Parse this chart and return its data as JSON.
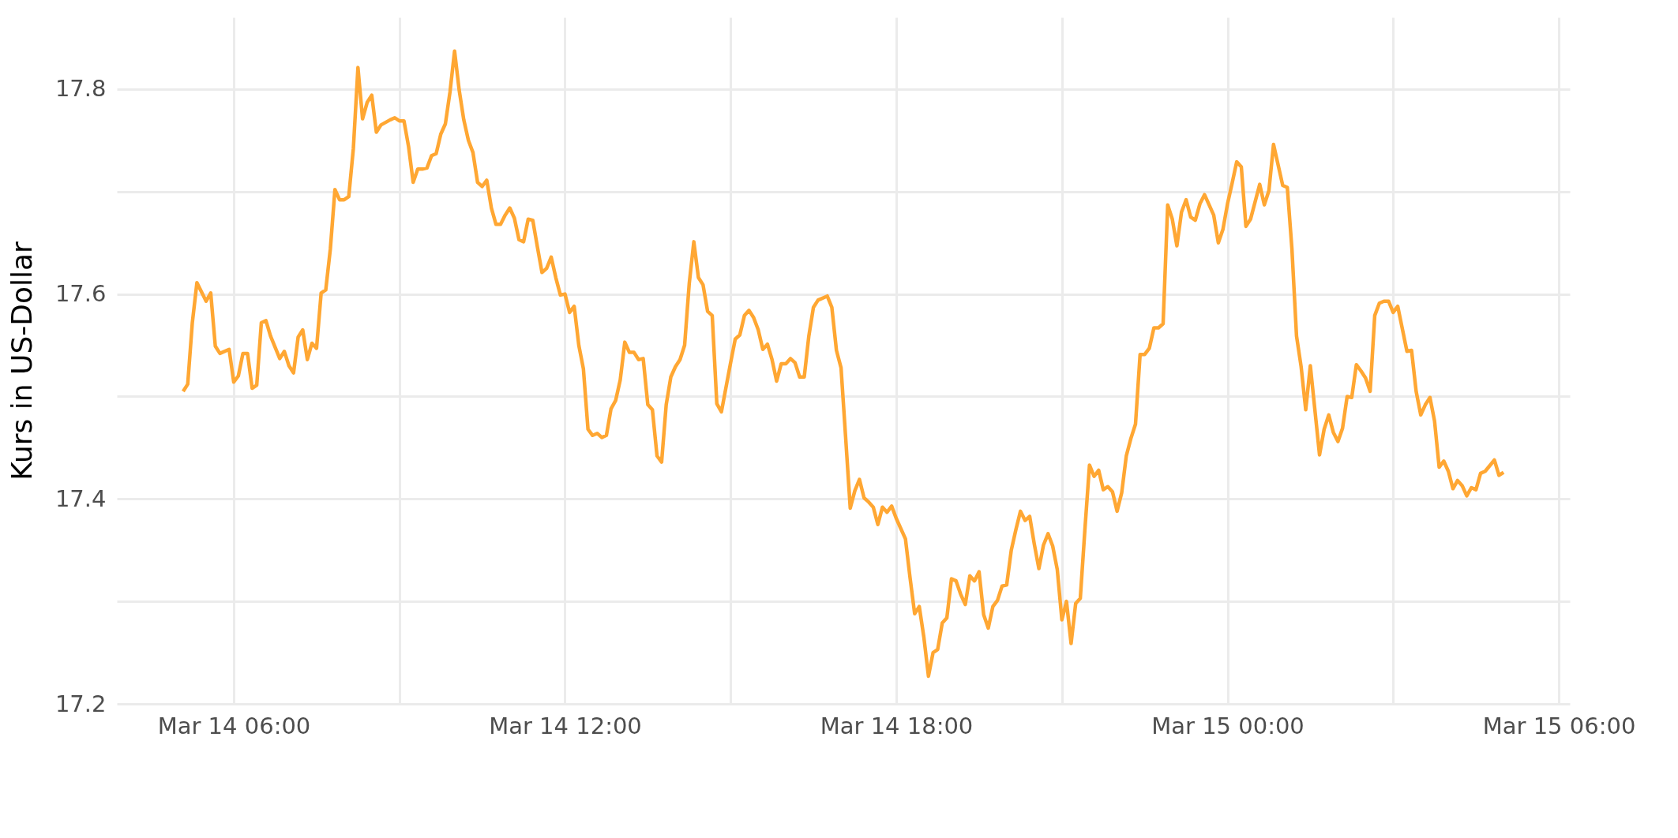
{
  "chart_data": {
    "type": "line",
    "ylabel": "Kurs in US-Dollar",
    "color": "#ffa733",
    "grid": true,
    "xlim": [
      "--03-14T03:53",
      "--03-15T06:12"
    ],
    "ylim": [
      17.2,
      17.87
    ],
    "xticks": [
      {
        "value": "--03-14T06:00",
        "label": "Mar 14 06:00"
      },
      {
        "value": "--03-14T09:00",
        "label": null
      },
      {
        "value": "--03-14T12:00",
        "label": "Mar 14 12:00"
      },
      {
        "value": "--03-14T15:00",
        "label": null
      },
      {
        "value": "--03-14T18:00",
        "label": "Mar 14 18:00"
      },
      {
        "value": "--03-14T21:00",
        "label": null
      },
      {
        "value": "--03-15T00:00",
        "label": "Mar 15 00:00"
      },
      {
        "value": "--03-15T03:00",
        "label": null
      },
      {
        "value": "--03-15T06:00",
        "label": "Mar 15 06:00"
      }
    ],
    "yticks": [
      17.2,
      {
        "value": 17.3,
        "label": null
      },
      17.4,
      {
        "value": 17.5,
        "label": null
      },
      17.6,
      {
        "value": 17.7,
        "label": null
      },
      17.8
    ],
    "x": [
      "--03-14T05:05",
      "--03-14T05:10",
      "--03-14T05:15",
      "--03-14T05:20",
      "--03-14T05:30",
      "--03-14T05:35",
      "--03-14T05:40",
      "--03-14T05:45",
      "--03-14T05:55",
      "--03-14T06:00",
      "--03-14T06:05",
      "--03-14T06:10",
      "--03-14T06:15",
      "--03-14T06:20",
      "--03-14T06:25",
      "--03-14T06:30",
      "--03-14T06:35",
      "--03-14T06:40",
      "--03-14T06:50",
      "--03-14T06:55",
      "--03-14T07:00",
      "--03-14T07:05",
      "--03-14T07:10",
      "--03-14T07:15",
      "--03-14T07:20",
      "--03-14T07:25",
      "--03-14T07:30",
      "--03-14T07:35",
      "--03-14T07:40",
      "--03-14T07:45",
      "--03-14T07:50",
      "--03-14T07:55",
      "--03-14T08:00",
      "--03-14T08:05",
      "--03-14T08:10",
      "--03-14T08:15",
      "--03-14T08:20",
      "--03-14T08:25",
      "--03-14T08:30",
      "--03-14T08:35",
      "--03-14T08:40",
      "--03-14T08:50",
      "--03-14T08:55",
      "--03-14T09:00",
      "--03-14T09:05",
      "--03-14T09:10",
      "--03-14T09:15",
      "--03-14T09:20",
      "--03-14T09:25",
      "--03-14T09:30",
      "--03-14T09:35",
      "--03-14T09:40",
      "--03-14T09:45",
      "--03-14T09:50",
      "--03-14T09:55",
      "--03-14T10:00",
      "--03-14T10:05",
      "--03-14T10:10",
      "--03-14T10:15",
      "--03-14T10:20",
      "--03-14T10:25",
      "--03-14T10:30",
      "--03-14T10:35",
      "--03-14T10:40",
      "--03-14T10:45",
      "--03-14T10:50",
      "--03-14T10:55",
      "--03-14T11:00",
      "--03-14T11:05",
      "--03-14T11:10",
      "--03-14T11:15",
      "--03-14T11:20",
      "--03-14T11:25",
      "--03-14T11:30",
      "--03-14T11:35",
      "--03-14T11:40",
      "--03-14T11:45",
      "--03-14T11:50",
      "--03-14T11:55",
      "--03-14T12:00",
      "--03-14T12:05",
      "--03-14T12:10",
      "--03-14T12:15",
      "--03-14T12:20",
      "--03-14T12:25",
      "--03-14T12:30",
      "--03-14T12:35",
      "--03-14T12:40",
      "--03-14T12:45",
      "--03-14T12:50",
      "--03-14T12:55",
      "--03-14T13:00",
      "--03-14T13:05",
      "--03-14T13:10",
      "--03-14T13:15",
      "--03-14T13:20",
      "--03-14T13:25",
      "--03-14T13:30",
      "--03-14T13:35",
      "--03-14T13:40",
      "--03-14T13:45",
      "--03-14T13:50",
      "--03-14T13:55",
      "--03-14T14:00",
      "--03-14T14:05",
      "--03-14T14:10",
      "--03-14T14:15",
      "--03-14T14:20",
      "--03-14T14:25",
      "--03-14T14:30",
      "--03-14T14:35",
      "--03-14T14:40",
      "--03-14T14:45",
      "--03-14T14:50",
      "--03-14T15:00",
      "--03-14T15:05",
      "--03-14T15:10",
      "--03-14T15:15",
      "--03-14T15:20",
      "--03-14T15:25",
      "--03-14T15:30",
      "--03-14T15:35",
      "--03-14T15:40",
      "--03-14T15:45",
      "--03-14T15:50",
      "--03-14T15:55",
      "--03-14T16:00",
      "--03-14T16:05",
      "--03-14T16:10",
      "--03-14T16:15",
      "--03-14T16:20",
      "--03-14T16:25",
      "--03-14T16:30",
      "--03-14T16:35",
      "--03-14T16:45",
      "--03-14T16:50",
      "--03-14T16:55",
      "--03-14T17:00",
      "--03-14T17:05",
      "--03-14T17:10",
      "--03-14T17:15",
      "--03-14T17:20",
      "--03-14T17:25",
      "--03-14T17:30",
      "--03-14T17:35",
      "--03-14T17:40",
      "--03-14T17:45",
      "--03-14T17:50",
      "--03-14T17:55",
      "--03-14T18:00",
      "--03-14T18:05",
      "--03-14T18:10",
      "--03-14T18:15",
      "--03-14T18:20",
      "--03-14T18:25",
      "--03-14T18:30",
      "--03-14T18:35",
      "--03-14T18:40",
      "--03-14T18:45",
      "--03-14T18:50",
      "--03-14T18:55",
      "--03-14T19:00",
      "--03-14T19:05",
      "--03-14T19:10",
      "--03-14T19:15",
      "--03-14T19:20",
      "--03-14T19:25",
      "--03-14T19:30",
      "--03-14T19:35",
      "--03-14T19:40",
      "--03-14T19:45",
      "--03-14T19:50",
      "--03-14T19:55",
      "--03-14T20:00",
      "--03-14T20:05",
      "--03-14T20:10",
      "--03-14T20:15",
      "--03-14T20:20",
      "--03-14T20:25",
      "--03-14T20:30",
      "--03-14T20:35",
      "--03-14T20:40",
      "--03-14T20:45",
      "--03-14T20:50",
      "--03-14T20:55",
      "--03-14T21:00",
      "--03-14T21:05",
      "--03-14T21:10",
      "--03-14T21:15",
      "--03-14T21:20",
      "--03-14T21:25",
      "--03-14T21:30",
      "--03-14T21:35",
      "--03-14T21:40",
      "--03-14T21:45",
      "--03-14T21:50",
      "--03-14T21:55",
      "--03-14T22:00",
      "--03-14T22:05",
      "--03-14T22:10",
      "--03-14T22:15",
      "--03-14T22:20",
      "--03-14T22:25",
      "--03-14T22:30",
      "--03-14T22:35",
      "--03-14T22:40",
      "--03-14T22:45",
      "--03-14T22:50",
      "--03-14T22:55",
      "--03-14T23:00",
      "--03-14T23:05",
      "--03-14T23:10",
      "--03-14T23:15",
      "--03-14T23:20",
      "--03-14T23:25",
      "--03-14T23:30",
      "--03-14T23:35",
      "--03-14T23:45",
      "--03-14T23:50",
      "--03-14T23:55",
      "--03-15T00:00",
      "--03-15T00:05",
      "--03-15T00:10",
      "--03-15T00:15",
      "--03-15T00:20",
      "--03-15T00:25",
      "--03-15T00:35",
      "--03-15T00:40",
      "--03-15T00:45",
      "--03-15T00:50",
      "--03-15T00:55",
      "--03-15T01:00",
      "--03-15T01:05",
      "--03-15T01:10",
      "--03-15T01:15",
      "--03-15T01:20",
      "--03-15T01:25",
      "--03-15T01:30",
      "--03-15T01:40",
      "--03-15T01:45",
      "--03-15T01:50",
      "--03-15T01:55",
      "--03-15T02:00",
      "--03-15T02:05",
      "--03-15T02:10",
      "--03-15T02:15",
      "--03-15T02:20",
      "--03-15T02:25",
      "--03-15T02:30",
      "--03-15T02:35",
      "--03-15T02:40",
      "--03-15T02:45",
      "--03-15T02:50",
      "--03-15T02:55",
      "--03-15T03:00",
      "--03-15T03:05",
      "--03-15T03:10",
      "--03-15T03:15",
      "--03-15T03:20",
      "--03-15T03:25",
      "--03-15T03:30",
      "--03-15T03:35",
      "--03-15T03:40",
      "--03-15T03:45",
      "--03-15T03:50",
      "--03-15T03:55",
      "--03-15T04:00",
      "--03-15T04:05",
      "--03-15T04:10",
      "--03-15T04:15",
      "--03-15T04:20",
      "--03-15T04:25",
      "--03-15T04:30",
      "--03-15T04:35",
      "--03-15T04:40",
      "--03-15T04:50",
      "--03-15T04:55",
      "--03-15T05:00"
    ],
    "values": [
      17.505,
      17.512,
      17.572,
      17.611,
      17.593,
      17.601,
      17.549,
      17.542,
      17.546,
      17.514,
      17.52,
      17.542,
      17.542,
      17.508,
      17.511,
      17.572,
      17.574,
      17.559,
      17.537,
      17.544,
      17.53,
      17.523,
      17.558,
      17.565,
      17.536,
      17.552,
      17.547,
      17.601,
      17.604,
      17.644,
      17.702,
      17.692,
      17.692,
      17.695,
      17.742,
      17.821,
      17.771,
      17.787,
      17.794,
      17.758,
      17.765,
      17.77,
      17.772,
      17.769,
      17.769,
      17.744,
      17.709,
      17.722,
      17.722,
      17.723,
      17.735,
      17.737,
      17.756,
      17.766,
      17.797,
      17.837,
      17.799,
      17.77,
      17.75,
      17.738,
      17.709,
      17.705,
      17.711,
      17.684,
      17.668,
      17.668,
      17.677,
      17.684,
      17.674,
      17.653,
      17.651,
      17.673,
      17.672,
      17.646,
      17.621,
      17.625,
      17.636,
      17.616,
      17.599,
      17.6,
      17.582,
      17.588,
      17.55,
      17.527,
      17.468,
      17.462,
      17.464,
      17.46,
      17.462,
      17.488,
      17.496,
      17.516,
      17.553,
      17.543,
      17.543,
      17.536,
      17.537,
      17.492,
      17.487,
      17.442,
      17.436,
      17.492,
      17.519,
      17.529,
      17.536,
      17.55,
      17.61,
      17.651,
      17.616,
      17.609,
      17.583,
      17.579,
      17.493,
      17.485,
      17.533,
      17.556,
      17.56,
      17.579,
      17.584,
      17.577,
      17.565,
      17.546,
      17.551,
      17.536,
      17.515,
      17.532,
      17.532,
      17.537,
      17.533,
      17.519,
      17.519,
      17.559,
      17.587,
      17.594,
      17.598,
      17.587,
      17.545,
      17.528,
      17.46,
      17.391,
      17.408,
      17.419,
      17.401,
      17.397,
      17.392,
      17.375,
      17.392,
      17.387,
      17.393,
      17.381,
      17.371,
      17.361,
      17.323,
      17.288,
      17.295,
      17.265,
      17.227,
      17.25,
      17.253,
      17.279,
      17.284,
      17.322,
      17.32,
      17.307,
      17.297,
      17.325,
      17.32,
      17.329,
      17.287,
      17.274,
      17.295,
      17.301,
      17.315,
      17.316,
      17.35,
      17.37,
      17.388,
      17.379,
      17.383,
      17.356,
      17.332,
      17.355,
      17.366,
      17.354,
      17.331,
      17.282,
      17.3,
      17.259,
      17.298,
      17.303,
      17.37,
      17.433,
      17.422,
      17.428,
      17.409,
      17.412,
      17.407,
      17.388,
      17.406,
      17.442,
      17.459,
      17.473,
      17.541,
      17.541,
      17.547,
      17.567,
      17.567,
      17.571,
      17.687,
      17.673,
      17.647,
      17.68,
      17.692,
      17.675,
      17.672,
      17.688,
      17.697,
      17.677,
      17.65,
      17.663,
      17.688,
      17.708,
      17.729,
      17.724,
      17.666,
      17.673,
      17.707,
      17.687,
      17.701,
      17.746,
      17.726,
      17.706,
      17.704,
      17.644,
      17.559,
      17.529,
      17.487,
      17.53,
      17.443,
      17.468,
      17.482,
      17.465,
      17.456,
      17.469,
      17.5,
      17.499,
      17.531,
      17.525,
      17.518,
      17.505,
      17.579,
      17.591,
      17.593,
      17.593,
      17.582,
      17.588,
      17.566,
      17.544,
      17.545,
      17.505,
      17.482,
      17.492,
      17.499,
      17.476,
      17.431,
      17.437,
      17.427,
      17.41,
      17.418,
      17.413,
      17.403,
      17.411,
      17.409,
      17.425,
      17.427,
      17.438,
      17.423,
      17.426
    ]
  }
}
